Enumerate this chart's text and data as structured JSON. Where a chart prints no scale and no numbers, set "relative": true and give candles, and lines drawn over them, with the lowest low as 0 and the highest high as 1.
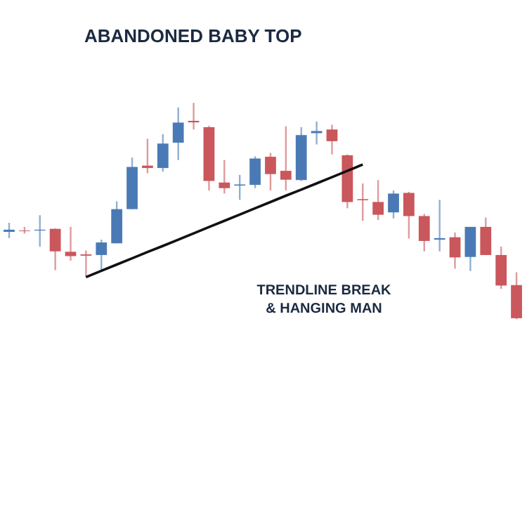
{
  "chart_data": {
    "type": "candlestick",
    "relative": true,
    "categories": [
      null,
      null,
      null,
      null,
      null,
      null,
      null,
      null,
      null,
      null,
      null,
      null,
      null,
      null,
      null,
      null,
      null,
      null,
      null,
      null,
      null,
      null,
      null,
      null,
      null,
      null,
      null,
      null,
      null,
      null,
      null,
      null,
      null,
      null
    ],
    "ohlc": [
      [
        0.404,
        0.446,
        0.375,
        0.414
      ],
      [
        0.41,
        0.427,
        0.396,
        0.407
      ],
      [
        0.41,
        0.481,
        0.336,
        0.414
      ],
      [
        0.418,
        0.42,
        0.227,
        0.314
      ],
      [
        0.312,
        0.427,
        0.271,
        0.292
      ],
      [
        0.3,
        0.318,
        0.195,
        0.294
      ],
      [
        0.297,
        0.368,
        0.227,
        0.355
      ],
      [
        0.351,
        0.545,
        0.351,
        0.509
      ],
      [
        0.509,
        0.747,
        0.509,
        0.704
      ],
      [
        0.71,
        0.834,
        0.675,
        0.699
      ],
      [
        0.699,
        0.855,
        0.682,
        0.812
      ],
      [
        0.816,
        0.979,
        0.736,
        0.909
      ],
      [
        0.917,
        1.0,
        0.877,
        0.91
      ],
      [
        0.888,
        0.894,
        0.595,
        0.639
      ],
      [
        0.632,
        0.736,
        0.581,
        0.606
      ],
      [
        0.618,
        0.667,
        0.552,
        0.623
      ],
      [
        0.621,
        0.753,
        0.606,
        0.743
      ],
      [
        0.751,
        0.769,
        0.595,
        0.671
      ],
      [
        0.686,
        0.892,
        0.595,
        0.645
      ],
      [
        0.643,
        0.888,
        0.639,
        0.851
      ],
      [
        0.86,
        0.914,
        0.808,
        0.87
      ],
      [
        0.877,
        0.899,
        0.762,
        0.823
      ],
      [
        0.758,
        0.762,
        0.513,
        0.542
      ],
      [
        0.555,
        0.628,
        0.455,
        0.55
      ],
      [
        0.542,
        0.643,
        0.459,
        0.483
      ],
      [
        0.494,
        0.595,
        0.466,
        0.581
      ],
      [
        0.584,
        0.589,
        0.373,
        0.477
      ],
      [
        0.477,
        0.487,
        0.314,
        0.362
      ],
      [
        0.368,
        0.552,
        0.314,
        0.375
      ],
      [
        0.379,
        0.401,
        0.234,
        0.286
      ],
      [
        0.288,
        0.427,
        0.223,
        0.427
      ],
      [
        0.427,
        0.47,
        0.297,
        0.297
      ],
      [
        0.297,
        0.336,
        0.141,
        0.156
      ],
      [
        0.158,
        0.217,
        0.0,
        0.005
      ]
    ],
    "colors": [
      "#4a7ab5",
      "#c9575b",
      "#4a7ab5",
      "#c9575b",
      "#c9575b",
      "#c9575b",
      "#4a7ab5",
      "#4a7ab5",
      "#4a7ab5",
      "#c9575b",
      "#4a7ab5",
      "#4a7ab5",
      "#c9575b",
      "#c9575b",
      "#c9575b",
      "#4a7ab5",
      "#4a7ab5",
      "#c9575b",
      "#c9575b",
      "#4a7ab5",
      "#4a7ab5",
      "#c9575b",
      "#c9575b",
      "#c9575b",
      "#c9575b",
      "#4a7ab5",
      "#c9575b",
      "#c9575b",
      "#4a7ab5",
      "#c9575b",
      "#4a7ab5",
      "#c9575b",
      "#c9575b",
      "#c9575b"
    ],
    "series": [
      {
        "type": "line",
        "color": "#111111",
        "values": [
          null,
          null,
          null,
          null,
          null,
          0.195,
          0.224,
          0.253,
          0.282,
          0.311,
          0.339,
          0.368,
          0.397,
          0.426,
          0.455,
          0.484,
          0.513,
          0.542,
          0.571,
          0.599,
          0.628,
          0.657,
          0.686,
          0.715,
          null,
          null,
          null,
          null,
          null,
          null,
          null,
          null,
          null,
          null
        ]
      }
    ],
    "annotations": [
      "ABANDONED BABY TOP",
      "TRENDLINE BREAK\n& HANGING MAN"
    ]
  }
}
